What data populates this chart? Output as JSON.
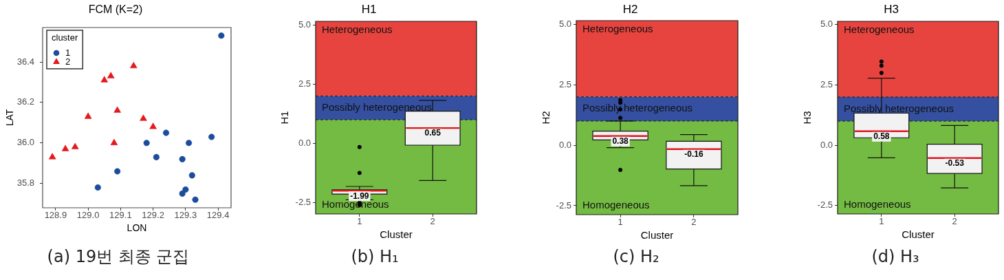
{
  "chart_data": [
    {
      "type": "scatter",
      "title": "FCM (K=2)",
      "xlabel": "LON",
      "ylabel": "LAT",
      "legend_title": "cluster",
      "legend": "top left",
      "series": [
        {
          "name": "1",
          "color": "#1c4c9c",
          "marker": "circle",
          "x": [
            129.41,
            129.24,
            129.18,
            129.38,
            129.31,
            129.21,
            129.29,
            129.09,
            129.32,
            129.03,
            129.3,
            129.29,
            129.33
          ],
          "values": [
            36.53,
            36.05,
            36.0,
            36.03,
            36.0,
            35.93,
            35.92,
            35.86,
            35.84,
            35.78,
            35.77,
            35.75,
            35.72
          ]
        },
        {
          "name": "2",
          "color": "#e4191c",
          "marker": "triangle",
          "x": [
            128.89,
            128.93,
            128.96,
            129.0,
            129.05,
            129.07,
            129.14,
            129.09,
            129.08,
            129.17,
            129.2
          ],
          "values": [
            35.93,
            35.97,
            35.98,
            36.13,
            36.31,
            36.33,
            36.38,
            36.16,
            36.0,
            36.12,
            36.08
          ]
        }
      ],
      "xlim": [
        128.86,
        129.44
      ],
      "xticks": [
        128.9,
        {
          "value": 129,
          "label": "129.0"
        },
        129.1,
        129.2,
        129.3,
        129.4
      ],
      "ylim": [
        35.68,
        36.57
      ],
      "yticks": [
        35.8,
        {
          "value": 36,
          "label": "36.0"
        },
        36.2,
        36.4
      ],
      "annotations": [
        "(a) 19번 최종 군집"
      ]
    },
    {
      "type": "box",
      "title": "H1",
      "xlabel": "Cluster",
      "ylabel": "H1",
      "categories": [
        "1",
        "2"
      ],
      "series": [
        {
          "color": "#f2f2f2",
          "boxes": [
            {
              "low": -2.37,
              "q1": -2.13,
              "median": -1.99,
              "q3": -1.95,
              "high": -1.81,
              "outliers": [
                -0.15,
                -1.24,
                -2.5,
                -2.6
              ]
            },
            {
              "low": -1.56,
              "q1": -0.07,
              "median": 0.65,
              "q3": 1.36,
              "high": 1.82
            }
          ],
          "value_labels": [
            "-1.99",
            "0.65"
          ]
        }
      ],
      "ylim": [
        -2.97,
        5.15
      ],
      "yticks": [
        -2.5,
        {
          "value": 0,
          "label": "0.0"
        },
        2.5,
        {
          "value": 5,
          "label": "5.0"
        }
      ],
      "bands": [
        {
          "axis": "y",
          "from": 2,
          "to": 5.15,
          "label": "Heterogeneous",
          "color": "#e8443f"
        },
        {
          "axis": "y",
          "from": 1,
          "to": 2,
          "label": "Possibly heterogeneous",
          "color": "#3550a0"
        },
        {
          "axis": "y",
          "from": -2.97,
          "to": 1,
          "label": "Homogeneous",
          "color": "#74bb43"
        }
      ],
      "ref_lines": [
        {
          "axis": "y",
          "value": 2,
          "line_style": "dashed"
        },
        {
          "axis": "y",
          "value": 1,
          "line_style": "dashed"
        }
      ],
      "annotations": [
        "(b) H₁"
      ]
    },
    {
      "type": "box",
      "title": "H2",
      "xlabel": "Cluster",
      "ylabel": "H2",
      "categories": [
        "1",
        "2"
      ],
      "series": [
        {
          "color": "#f2f2f2",
          "boxes": [
            {
              "low": -0.1,
              "q1": 0.22,
              "median": 0.38,
              "q3": 0.58,
              "high": 1.0,
              "outliers": [
                1.87,
                1.76,
                1.48,
                1.13,
                -1.02
              ]
            },
            {
              "low": -1.67,
              "q1": -0.98,
              "median": -0.16,
              "q3": 0.16,
              "high": 0.44
            }
          ],
          "value_labels": [
            "0.38",
            "-0.16"
          ]
        }
      ],
      "ylim": [
        -2.87,
        5.15
      ],
      "yticks": [
        -2.5,
        {
          "value": 0,
          "label": "0.0"
        },
        2.5,
        {
          "value": 5,
          "label": "5.0"
        }
      ],
      "bands": [
        {
          "axis": "y",
          "from": 2,
          "to": 5.15,
          "label": "Heterogeneous",
          "color": "#e8443f"
        },
        {
          "axis": "y",
          "from": 1,
          "to": 2,
          "label": "Possibly heterogeneous",
          "color": "#3550a0"
        },
        {
          "axis": "y",
          "from": -2.87,
          "to": 1,
          "label": "Homogeneous",
          "color": "#74bb43"
        }
      ],
      "ref_lines": [
        {
          "axis": "y",
          "value": 2,
          "line_style": "dashed"
        },
        {
          "axis": "y",
          "value": 1,
          "line_style": "dashed"
        }
      ],
      "annotations": [
        "(c) H₂"
      ]
    },
    {
      "type": "box",
      "title": "H3",
      "xlabel": "Cluster",
      "ylabel": "H3",
      "categories": [
        "1",
        "2"
      ],
      "series": [
        {
          "color": "#f2f2f2",
          "boxes": [
            {
              "low": -0.52,
              "q1": 0.31,
              "median": 0.58,
              "q3": 1.33,
              "high": 2.78,
              "outliers": [
                3.47,
                3.3,
                3.0
              ]
            },
            {
              "low": -1.77,
              "q1": -1.17,
              "median": -0.53,
              "q3": 0.04,
              "high": 0.82
            }
          ],
          "value_labels": [
            "0.58",
            "-0.53"
          ]
        }
      ],
      "ylim": [
        -2.85,
        5.14
      ],
      "yticks": [
        -2.5,
        {
          "value": 0,
          "label": "0.0"
        },
        2.5,
        {
          "value": 5,
          "label": "5.0"
        }
      ],
      "bands": [
        {
          "axis": "y",
          "from": 2,
          "to": 5.14,
          "label": "Heterogeneous",
          "color": "#e8443f"
        },
        {
          "axis": "y",
          "from": 1,
          "to": 2,
          "label": "Possibly heterogeneous",
          "color": "#3550a0"
        },
        {
          "axis": "y",
          "from": -2.85,
          "to": 1,
          "label": "Homogeneous",
          "color": "#74bb43"
        }
      ],
      "ref_lines": [
        {
          "axis": "y",
          "value": 2,
          "line_style": "dashed"
        },
        {
          "axis": "y",
          "value": 1,
          "line_style": "dashed"
        }
      ],
      "annotations": [
        "(d) H₃"
      ]
    }
  ]
}
